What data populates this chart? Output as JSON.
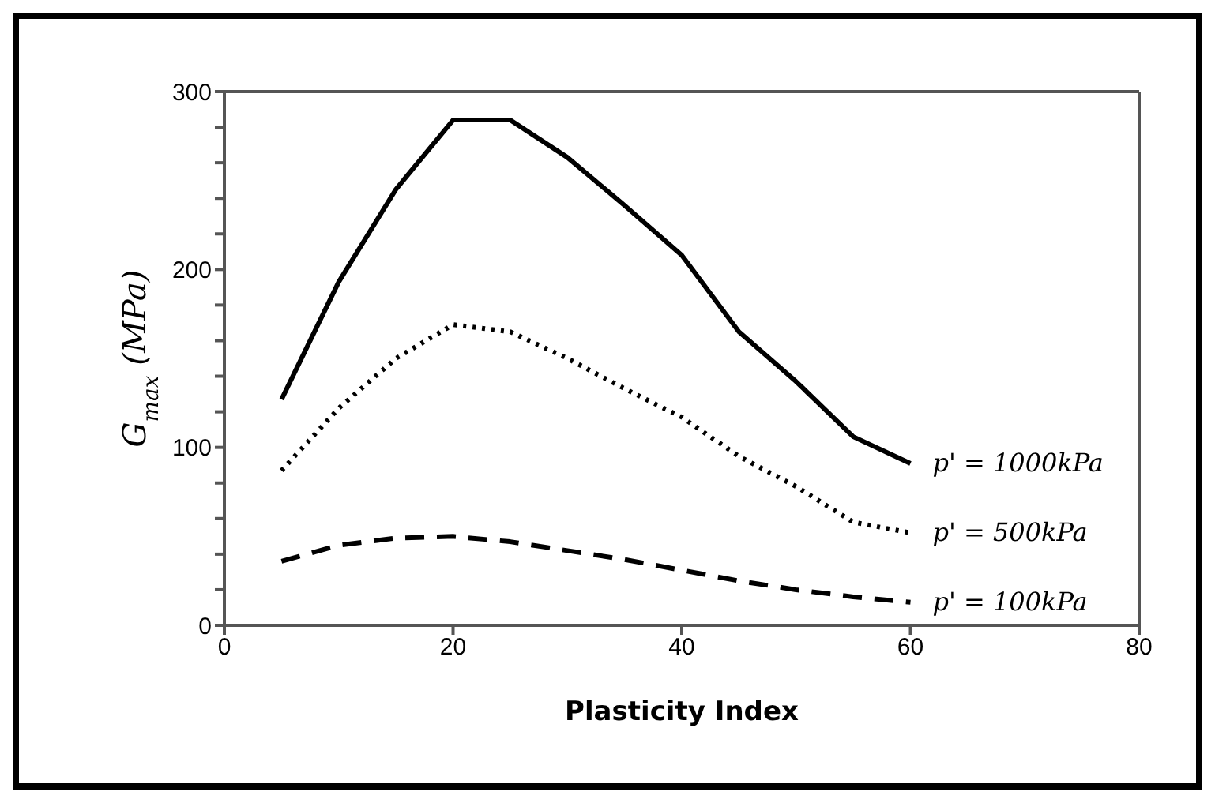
{
  "chart_data": {
    "type": "line",
    "xlabel": "Plasticity Index",
    "ylabel": "G$_{max}$ (MPa)",
    "x": [
      5,
      10,
      15,
      20,
      25,
      30,
      35,
      40,
      45,
      50,
      55,
      60
    ],
    "series": [
      {
        "name": "p' = 1000kPa",
        "color": "#000000",
        "line_style": "solid",
        "values": [
          127,
          193,
          245,
          284,
          284,
          263,
          236,
          208,
          165,
          137,
          106,
          91
        ]
      },
      {
        "name": "p' = 500kPa",
        "color": "#000000",
        "line_style": "dotted",
        "values": [
          87,
          122,
          150,
          169,
          165,
          150,
          133,
          117,
          95,
          78,
          58,
          52
        ]
      },
      {
        "name": "p' = 100kPa",
        "color": "#000000",
        "line_style": "dashed",
        "values": [
          36,
          45,
          49,
          50,
          47,
          42,
          37,
          31,
          25,
          20,
          16,
          13
        ]
      }
    ],
    "xlim": [
      0,
      80
    ],
    "xticks": [
      0,
      20,
      40,
      60,
      80
    ],
    "ylim": [
      0,
      300
    ],
    "yticks": [
      0,
      {
        "value": 20,
        "label": null
      },
      {
        "value": 40,
        "label": null
      },
      {
        "value": 60,
        "label": null
      },
      {
        "value": 80,
        "label": null
      },
      100,
      {
        "value": 120,
        "label": null
      },
      {
        "value": 140,
        "label": null
      },
      {
        "value": 160,
        "label": null
      },
      {
        "value": 180,
        "label": null
      },
      200,
      {
        "value": 220,
        "label": null
      },
      {
        "value": 240,
        "label": null
      },
      {
        "value": 260,
        "label": null
      },
      {
        "value": 280,
        "label": null
      },
      300
    ],
    "marker": "none",
    "grid": false
  }
}
